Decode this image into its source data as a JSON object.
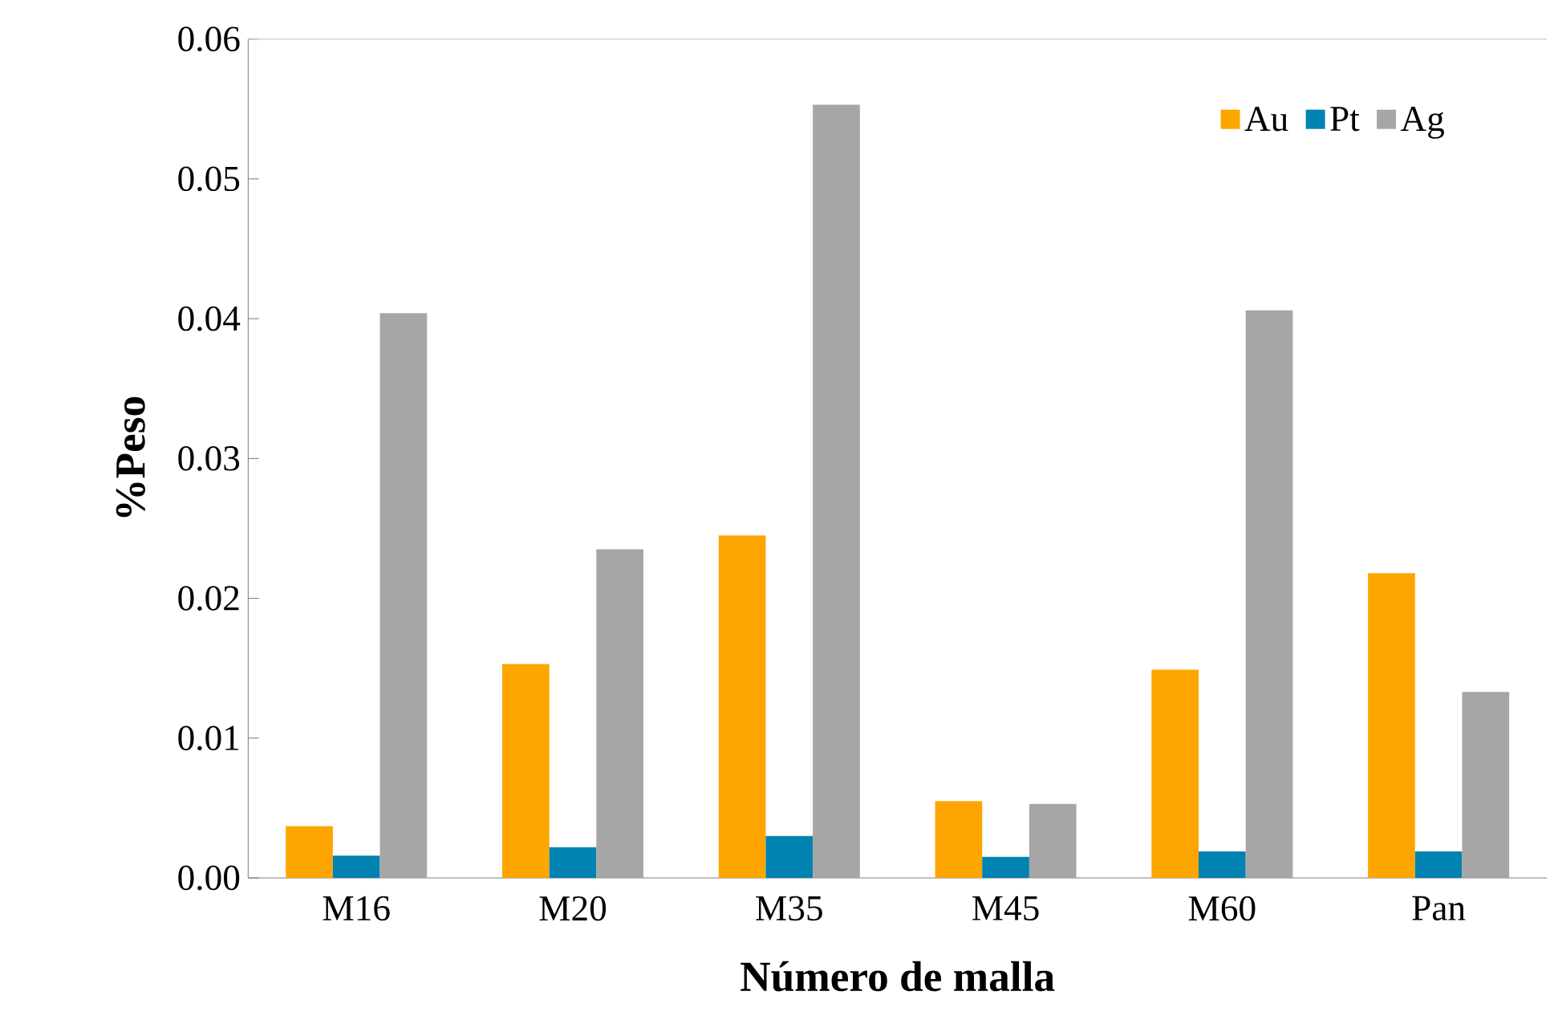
{
  "chart_data": {
    "type": "bar",
    "xlabel": "Número de malla",
    "ylabel": "%Peso",
    "categories": [
      "M16",
      "M20",
      "M35",
      "M45",
      "M60",
      "Pan"
    ],
    "series": [
      {
        "name": "Au",
        "color": "#ffa500",
        "values": [
          0.0037,
          0.0153,
          0.0245,
          0.0055,
          0.0149,
          0.0218
        ]
      },
      {
        "name": "Pt",
        "color": "#0083b0",
        "values": [
          0.0016,
          0.0022,
          0.003,
          0.0015,
          0.0019,
          0.0019
        ]
      },
      {
        "name": "Ag",
        "color": "#a6a6a6",
        "values": [
          0.0404,
          0.0235,
          0.0553,
          0.0053,
          0.0406,
          0.0133
        ]
      }
    ],
    "ylim": [
      0,
      0.06
    ],
    "yticks": [
      {
        "value": 0,
        "label": "0.00"
      },
      0.01,
      0.02,
      0.03,
      0.04,
      0.05,
      0.06
    ],
    "legend": "top right",
    "grid": false
  }
}
